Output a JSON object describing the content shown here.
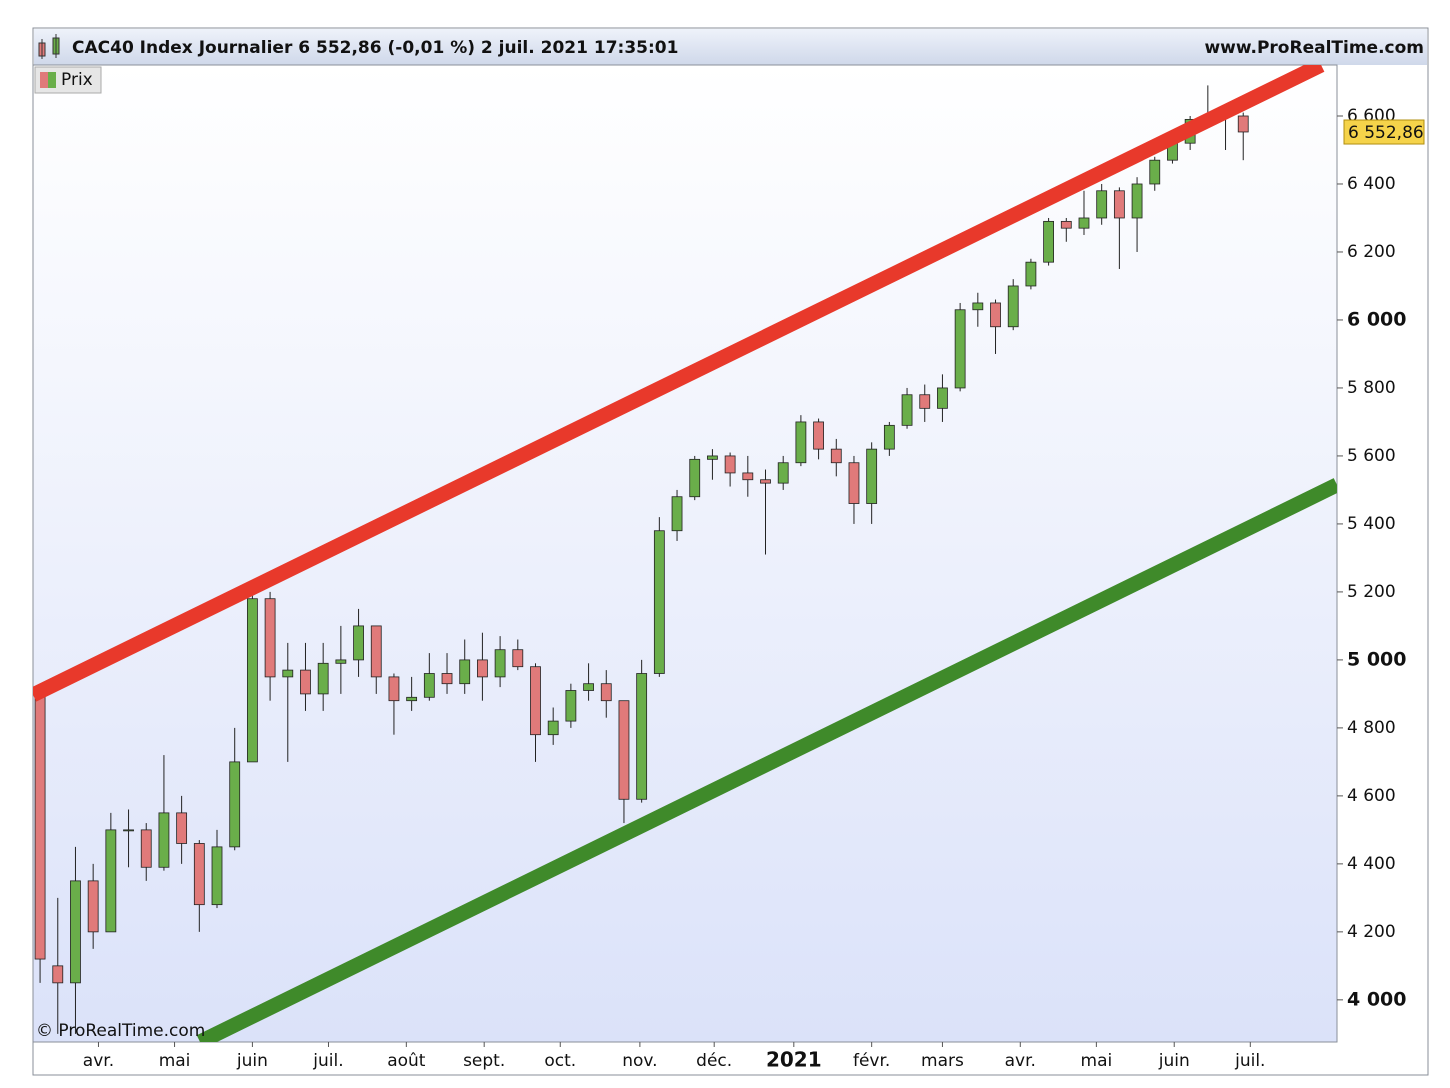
{
  "chart_data": {
    "type": "candlestick",
    "title": "CAC40 Index Journalier 6 552,86 (-0,01 %) 2 juil. 2021 17:35:01",
    "source": "www.ProRealTime.com",
    "watermark": "© ProRealTime.com",
    "legend": "Prix",
    "last_price": {
      "value": 6552.86,
      "label": "6 552,86"
    },
    "up_color": "#6aae4a",
    "down_color": "#e07a7a",
    "xlim": [
      -0.4,
      73.3
    ],
    "ylim": [
      3876,
      6750
    ],
    "xticks": [
      {
        "value": 3.3,
        "label": "avr."
      },
      {
        "value": 7.6,
        "label": "mai"
      },
      {
        "value": 12.0,
        "label": "juin"
      },
      {
        "value": 16.3,
        "label": "juil."
      },
      {
        "value": 20.7,
        "label": "août"
      },
      {
        "value": 25.1,
        "label": "sept."
      },
      {
        "value": 29.4,
        "label": "oct."
      },
      {
        "value": 33.9,
        "label": "nov."
      },
      {
        "value": 38.1,
        "label": "déc."
      },
      {
        "value": 42.6,
        "label": "2021"
      },
      {
        "value": 47.0,
        "label": "févr."
      },
      {
        "value": 51.0,
        "label": "mars"
      },
      {
        "value": 55.4,
        "label": "avr."
      },
      {
        "value": 59.7,
        "label": "mai"
      },
      {
        "value": 64.1,
        "label": "juin"
      },
      {
        "value": 68.4,
        "label": "juil."
      }
    ],
    "yticks": [
      {
        "value": 4000,
        "label": "4 000"
      },
      {
        "value": 4200,
        "label": "4 200"
      },
      {
        "value": 4400,
        "label": "4 400"
      },
      {
        "value": 4600,
        "label": "4 600"
      },
      {
        "value": 4800,
        "label": "4 800"
      },
      {
        "value": 5000,
        "label": "5 000"
      },
      {
        "value": 5200,
        "label": "5 200"
      },
      {
        "value": 5400,
        "label": "5 400"
      },
      {
        "value": 5600,
        "label": "5 600"
      },
      {
        "value": 5800,
        "label": "5 800"
      },
      {
        "value": 6000,
        "label": "6 000"
      },
      {
        "value": 6200,
        "label": "6 200"
      },
      {
        "value": 6400,
        "label": "6 400"
      },
      {
        "value": 6600,
        "label": "6 600"
      }
    ],
    "open": [
      4900,
      4100,
      4050,
      4350,
      4200,
      4500,
      4500,
      4390,
      4550,
      4460,
      4280,
      4450,
      4700,
      5180,
      4950,
      4970,
      4900,
      4990,
      5000,
      5100,
      4950,
      4880,
      4890,
      4960,
      4930,
      5000,
      4950,
      5030,
      4980,
      4780,
      4820,
      4910,
      4930,
      4880,
      4590,
      4960,
      5380,
      5480,
      5590,
      5600,
      5550,
      5530,
      5520,
      5580,
      5700,
      5620,
      5580,
      5460,
      5620,
      5690,
      5780,
      5740,
      5800,
      6030,
      6050,
      5980,
      6100,
      6170,
      6290,
      6270,
      6300,
      6380,
      6300,
      6400,
      6470,
      6520,
      6590,
      6600,
      6600
    ],
    "high": [
      4900,
      4300,
      4450,
      4400,
      4550,
      4560,
      4520,
      4720,
      4600,
      4470,
      4500,
      4800,
      5200,
      5200,
      5050,
      5050,
      5050,
      5100,
      5150,
      5100,
      4960,
      4950,
      5020,
      5020,
      5060,
      5080,
      5070,
      5060,
      4990,
      4860,
      4930,
      4990,
      4970,
      4880,
      5000,
      5420,
      5500,
      5600,
      5620,
      5610,
      5600,
      5560,
      5600,
      5720,
      5710,
      5650,
      5600,
      5640,
      5700,
      5800,
      5810,
      5840,
      6050,
      6080,
      6060,
      6120,
      6180,
      6300,
      6300,
      6380,
      6400,
      6390,
      6420,
      6480,
      6560,
      6600,
      6690,
      6620,
      6610
    ],
    "low": [
      4050,
      3900,
      3900,
      4150,
      4200,
      4390,
      4350,
      4380,
      4400,
      4200,
      4270,
      4440,
      4700,
      4880,
      4700,
      4850,
      4850,
      4900,
      4950,
      4900,
      4780,
      4850,
      4880,
      4900,
      4900,
      4880,
      4920,
      4970,
      4700,
      4750,
      4800,
      4880,
      4830,
      4520,
      4580,
      4950,
      5350,
      5470,
      5530,
      5510,
      5480,
      5310,
      5500,
      5570,
      5590,
      5540,
      5400,
      5400,
      5600,
      5680,
      5700,
      5700,
      5790,
      5980,
      5900,
      5970,
      6090,
      6160,
      6230,
      6250,
      6280,
      6150,
      6200,
      6380,
      6460,
      6500,
      6580,
      6500,
      6470
    ],
    "close": [
      4120,
      4050,
      4350,
      4200,
      4500,
      4500,
      4390,
      4550,
      4460,
      4280,
      4450,
      4700,
      5180,
      4950,
      4970,
      4900,
      4990,
      5000,
      5100,
      4950,
      4880,
      4890,
      4960,
      4930,
      5000,
      4950,
      5030,
      4980,
      4780,
      4820,
      4910,
      4930,
      4880,
      4590,
      4960,
      5380,
      5480,
      5590,
      5600,
      5550,
      5530,
      5520,
      5580,
      5700,
      5620,
      5580,
      5460,
      5620,
      5690,
      5780,
      5740,
      5800,
      6030,
      6050,
      5980,
      6100,
      6170,
      6290,
      6270,
      6300,
      6380,
      6300,
      6400,
      6470,
      6520,
      6590,
      6600,
      6600,
      6553
    ],
    "trendlines": [
      {
        "color": "#e8392b",
        "x": [
          -0.4,
          72.4
        ],
        "y": [
          4897,
          6750
        ]
      },
      {
        "color": "#3f8a2a",
        "x": [
          9.04,
          73.3
        ],
        "y": [
          3876,
          5515
        ]
      }
    ]
  }
}
